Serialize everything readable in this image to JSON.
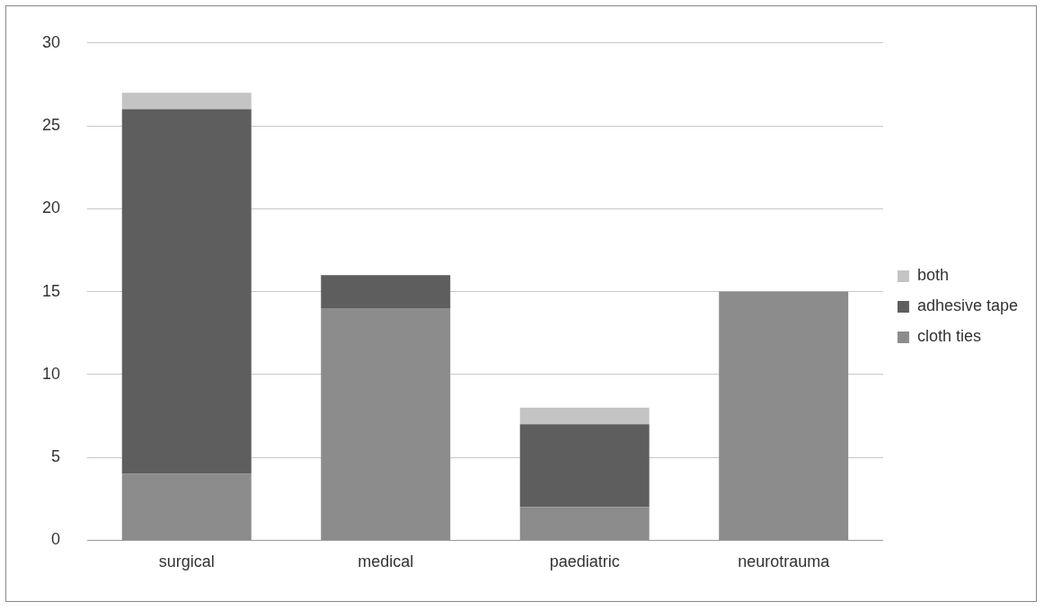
{
  "chart_data": {
    "type": "bar",
    "stacked": true,
    "categories": [
      "surgical",
      "medical",
      "paediatric",
      "neurotrauma"
    ],
    "series": [
      {
        "name": "cloth ties",
        "color": "#8c8c8c",
        "values": [
          4,
          14,
          2,
          15
        ]
      },
      {
        "name": "adhesive tape",
        "color": "#5e5e5e",
        "values": [
          22,
          2,
          5,
          0
        ]
      },
      {
        "name": "both",
        "color": "#c4c4c4",
        "values": [
          1,
          0,
          1,
          0
        ]
      }
    ],
    "ylim": [
      0,
      30
    ],
    "yticks": [
      0,
      5,
      10,
      15,
      20,
      25,
      30
    ],
    "grid": "y",
    "legend": "right"
  }
}
